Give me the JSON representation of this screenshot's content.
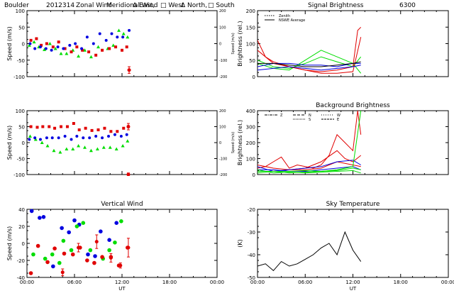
{
  "colors": {
    "red": "#e00000",
    "green": "#00dd00",
    "blue": "#0000e0",
    "black": "#000000"
  },
  "chart_data": [
    {
      "id": "meridional",
      "type": "scatter",
      "title_parts": [
        "Boulder",
        "2012314",
        "Meridional Wind",
        "Δ North,",
        "□ South"
      ],
      "ylabel": "Speed (m/s)",
      "y2label": "Speed (m/s)",
      "xlabel": "",
      "xlim": [
        0,
        24
      ],
      "ylim": [
        -100,
        100
      ],
      "yticks": [
        "100",
        "50",
        "0",
        "-50",
        "-100"
      ],
      "y2ticks": [
        "200",
        "100",
        "0",
        "-100",
        "-200"
      ],
      "xticks": [],
      "series": [
        {
          "color": "green",
          "marker": "triangle",
          "x": [
            0.3,
            0.9,
            1.5,
            2.2,
            2.9,
            3.6,
            4.3,
            5.0,
            5.8,
            6.5,
            7.3,
            8.1,
            9.0,
            10.2,
            10.9,
            11.6,
            12.2,
            12.7
          ],
          "y": [
            -5,
            5,
            -10,
            -18,
            0,
            -15,
            -30,
            -30,
            -20,
            -38,
            -20,
            -40,
            -10,
            -15,
            -5,
            40,
            30,
            20
          ]
        },
        {
          "color": "red",
          "marker": "square",
          "x": [
            0.5,
            1.2,
            1.8,
            2.5,
            3.3,
            4.0,
            4.8,
            5.6,
            6.3,
            7.0,
            7.8,
            8.7,
            9.5,
            10.4,
            11.2,
            12.0,
            12.6
          ],
          "y": [
            10,
            15,
            -5,
            0,
            -10,
            5,
            -15,
            -25,
            -10,
            -20,
            -25,
            -35,
            -20,
            -15,
            -10,
            -20,
            -10
          ]
        },
        {
          "color": "blue",
          "marker": "circle",
          "x": [
            0.4,
            1.0,
            1.7,
            2.4,
            3.1,
            3.9,
            4.6,
            5.4,
            6.1,
            6.9,
            7.6,
            8.4,
            9.2,
            10.0,
            10.7,
            11.4,
            12.1,
            12.9
          ],
          "y": [
            0,
            -15,
            -10,
            -15,
            -20,
            -10,
            -15,
            -5,
            0,
            -15,
            20,
            0,
            30,
            10,
            30,
            20,
            20,
            40
          ]
        }
      ],
      "errorbars": [
        {
          "x": 12.9,
          "y": -80,
          "err": 10
        }
      ]
    },
    {
      "id": "zonal",
      "type": "scatter",
      "title_parts": [
        "Zonal Wind",
        "Δ East,",
        "□ West"
      ],
      "ylabel": "Speed (m/s)",
      "y2label": "Speed (m/s)",
      "xlabel": "",
      "xlim": [
        0,
        24
      ],
      "ylim": [
        -100,
        100
      ],
      "yticks": [
        "100",
        "50",
        "0",
        "-50",
        "-100"
      ],
      "y2ticks": [
        "200",
        "100",
        "0",
        "-100",
        "-200"
      ],
      "xticks": [],
      "series": [
        {
          "color": "red",
          "marker": "square",
          "x": [
            0.5,
            1.3,
            2.0,
            2.8,
            3.5,
            4.3,
            5.1,
            5.9,
            6.6,
            7.4,
            8.2,
            9.0,
            9.8,
            10.6,
            11.4,
            12.2,
            12.8
          ],
          "y": [
            50,
            48,
            50,
            50,
            45,
            50,
            50,
            60,
            40,
            45,
            38,
            40,
            45,
            35,
            35,
            45,
            50
          ]
        },
        {
          "color": "green",
          "marker": "triangle",
          "x": [
            0.4,
            1.1,
            1.9,
            2.6,
            3.4,
            4.2,
            5.0,
            5.8,
            6.5,
            7.3,
            8.1,
            8.9,
            9.7,
            10.5,
            11.3,
            12.1,
            12.7
          ],
          "y": [
            20,
            10,
            0,
            -10,
            -25,
            -30,
            -20,
            -20,
            -10,
            -15,
            -25,
            -20,
            -15,
            -15,
            -20,
            -10,
            5
          ]
        },
        {
          "color": "blue",
          "marker": "circle",
          "x": [
            0.3,
            1.0,
            1.7,
            2.5,
            3.2,
            4.0,
            4.8,
            5.6,
            6.3,
            7.1,
            7.9,
            8.7,
            9.5,
            10.3,
            11.1,
            11.9,
            12.6
          ],
          "y": [
            10,
            15,
            10,
            15,
            15,
            15,
            20,
            10,
            20,
            15,
            15,
            20,
            15,
            20,
            25,
            20,
            25
          ]
        }
      ],
      "errorbars": [
        {
          "x": 12.8,
          "y": 50,
          "err": 10
        },
        {
          "x": 12.8,
          "y": -100,
          "err": 5
        }
      ]
    },
    {
      "id": "vertical",
      "type": "scatter",
      "title": "Vertical Wind",
      "ylabel": "Speed (m/s)",
      "xlabel": "UT",
      "xlim": [
        0,
        24
      ],
      "ylim": [
        -40,
        40
      ],
      "yticks": [
        "40",
        "20",
        "0",
        "-20",
        "-40"
      ],
      "xticks": [
        "00:00",
        "06:00",
        "12:00",
        "18:00",
        "00:00"
      ],
      "series": [
        {
          "color": "blue",
          "marker": "circle",
          "x": [
            0.6,
            1.6,
            2.1,
            3.3,
            4.4,
            5.3,
            6.0,
            6.6,
            7.7,
            8.6,
            9.3,
            10.4,
            11.3
          ],
          "y": [
            38,
            30,
            31,
            -27,
            18,
            13,
            27,
            22,
            -13,
            -15,
            14,
            4,
            24
          ]
        },
        {
          "color": "green",
          "marker": "circle",
          "x": [
            0.8,
            2.3,
            3.2,
            4.1,
            4.6,
            5.6,
            6.3,
            7.1,
            8.0,
            9.6,
            10.4,
            11.1,
            11.9
          ],
          "y": [
            -13,
            -18,
            -13,
            -23,
            3,
            -8,
            20,
            24,
            -8,
            -18,
            -8,
            1,
            26
          ]
        },
        {
          "color": "red",
          "marker": "circle",
          "x": [
            0.5,
            1.4,
            2.6,
            3.5,
            4.7,
            5.8,
            6.7,
            7.6,
            8.5,
            9.5,
            10.6,
            11.6,
            12.7
          ],
          "y": [
            -35,
            -3,
            -22,
            -6,
            -12,
            -13,
            -5,
            -20,
            -23,
            -16,
            -16,
            -26,
            -5
          ]
        }
      ],
      "errorbars": [
        {
          "x": 4.5,
          "y": -34,
          "err": 4
        },
        {
          "x": 6.5,
          "y": -5,
          "err": 5
        },
        {
          "x": 8.8,
          "y": 2,
          "err": 8
        },
        {
          "x": 10.6,
          "y": -17,
          "err": 5
        },
        {
          "x": 11.8,
          "y": -26,
          "err": 3
        },
        {
          "x": 12.8,
          "y": -5,
          "err": 11
        }
      ]
    },
    {
      "id": "signal",
      "type": "line",
      "title_parts": [
        "Signal Brightness",
        "6300"
      ],
      "ylabel": "Brightness (rel.)",
      "xlabel": "",
      "xlim": [
        0,
        24
      ],
      "ylim": [
        0,
        200
      ],
      "yticks": [
        "200",
        "150",
        "100",
        "50",
        "0"
      ],
      "xticks": [],
      "legend": {
        "placement": "top-left",
        "entries": [
          "Zenith",
          "NSWE Average"
        ]
      },
      "series": [
        {
          "color": "green",
          "x": [
            0,
            2,
            4,
            6,
            8,
            10,
            12,
            13
          ],
          "y": [
            40,
            25,
            20,
            50,
            80,
            60,
            40,
            10
          ]
        },
        {
          "color": "green",
          "x": [
            0,
            2,
            4,
            6,
            8,
            10,
            12,
            13
          ],
          "y": [
            50,
            30,
            25,
            40,
            60,
            45,
            30,
            60
          ]
        },
        {
          "color": "red",
          "x": [
            0,
            1,
            2,
            4,
            6,
            8,
            10,
            12,
            12.6,
            13
          ],
          "y": [
            110,
            60,
            45,
            30,
            20,
            15,
            20,
            30,
            140,
            150
          ]
        },
        {
          "color": "red",
          "x": [
            0,
            2,
            4,
            6,
            8,
            10,
            12,
            13
          ],
          "y": [
            80,
            40,
            30,
            20,
            10,
            10,
            15,
            120
          ]
        },
        {
          "color": "blue",
          "x": [
            0,
            2,
            4,
            6,
            8,
            10,
            12,
            13
          ],
          "y": [
            30,
            40,
            40,
            35,
            35,
            30,
            40,
            40
          ]
        },
        {
          "color": "blue",
          "x": [
            0,
            2,
            4,
            6,
            8,
            10,
            12,
            13
          ],
          "y": [
            20,
            25,
            30,
            25,
            20,
            25,
            30,
            35
          ]
        },
        {
          "color": "black",
          "x": [
            0,
            2,
            4,
            6,
            8,
            10,
            12,
            13
          ],
          "y": [
            40,
            40,
            35,
            30,
            30,
            35,
            40,
            45
          ]
        }
      ]
    },
    {
      "id": "background",
      "type": "line",
      "title": "Background Brightness",
      "ylabel": "Brightness (rel.)",
      "xlabel": "",
      "xlim": [
        0,
        24
      ],
      "ylim": [
        0,
        400
      ],
      "yticks": [
        "400",
        "300",
        "200",
        "100",
        "0"
      ],
      "xticks": [],
      "legend": {
        "placement": "top-left",
        "entries": [
          "Z",
          "N",
          "S",
          "W",
          "E"
        ]
      },
      "series": [
        {
          "color": "red",
          "x": [
            0,
            1,
            2,
            3,
            4,
            5,
            6,
            7,
            8,
            9,
            10,
            11,
            12,
            12.6,
            13
          ],
          "y": [
            40,
            50,
            80,
            110,
            40,
            60,
            50,
            40,
            60,
            120,
            250,
            200,
            150,
            400,
            250
          ]
        },
        {
          "color": "red",
          "x": [
            0,
            2,
            4,
            6,
            8,
            10,
            11,
            12,
            13
          ],
          "y": [
            60,
            40,
            30,
            40,
            80,
            150,
            100,
            80,
            120
          ]
        },
        {
          "color": "red",
          "x": [
            0,
            2,
            4,
            6,
            8,
            10,
            12,
            13
          ],
          "y": [
            20,
            20,
            30,
            30,
            40,
            80,
            60,
            50
          ]
        },
        {
          "color": "blue",
          "x": [
            0,
            2,
            4,
            6,
            8,
            10,
            12,
            13
          ],
          "y": [
            50,
            20,
            30,
            40,
            50,
            80,
            90,
            60
          ]
        },
        {
          "color": "blue",
          "x": [
            0,
            2,
            4,
            6,
            8,
            10,
            12,
            13
          ],
          "y": [
            30,
            30,
            20,
            20,
            30,
            40,
            50,
            30
          ]
        },
        {
          "color": "green",
          "x": [
            0,
            2,
            4,
            6,
            8,
            10,
            12,
            13
          ],
          "y": [
            10,
            20,
            10,
            15,
            20,
            30,
            50,
            400
          ]
        },
        {
          "color": "green",
          "x": [
            0,
            2,
            4,
            6,
            8,
            10,
            12,
            13
          ],
          "y": [
            30,
            10,
            15,
            10,
            15,
            20,
            25,
            10
          ]
        },
        {
          "color": "green",
          "x": [
            0,
            2,
            4,
            6,
            8,
            10,
            12,
            13
          ],
          "y": [
            20,
            20,
            20,
            25,
            20,
            25,
            40,
            30
          ]
        }
      ]
    },
    {
      "id": "skytemp",
      "type": "line",
      "title": "Sky Temperature",
      "ylabel": "(K)",
      "xlabel": "UT",
      "xlim": [
        0,
        24
      ],
      "ylim": [
        -50,
        -20
      ],
      "yticks": [
        "-20",
        "-30",
        "-40",
        "-50"
      ],
      "xticks": [
        "00:00",
        "06:00",
        "12:00",
        "18:00",
        "00:00"
      ],
      "series": [
        {
          "color": "black",
          "x": [
            0,
            1,
            2,
            3,
            4,
            5,
            6,
            7,
            8,
            9,
            10,
            11,
            12,
            13
          ],
          "y": [
            -45,
            -44,
            -47,
            -43,
            -45,
            -44,
            -42,
            -40,
            -37,
            -35,
            -40,
            -30,
            -38,
            -43
          ]
        }
      ]
    }
  ]
}
